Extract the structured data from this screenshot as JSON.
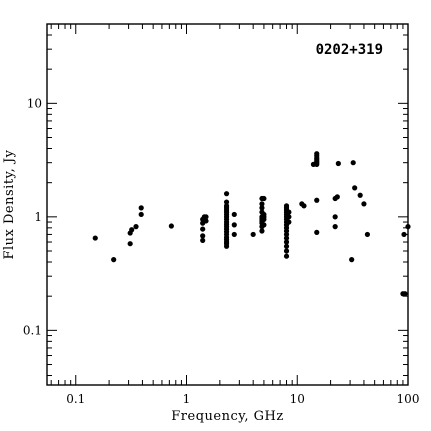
{
  "chart_data": {
    "type": "scatter",
    "title": "0202+319",
    "xlabel": "Frequency, GHz",
    "ylabel": "Flux Density, Jy",
    "xscale": "log",
    "yscale": "log",
    "xlim": [
      0.055,
      100
    ],
    "ylim": [
      0.033,
      50
    ],
    "grid": false,
    "legend": "none",
    "x_ticks": [
      {
        "value": 0.1,
        "label": "0.1"
      },
      {
        "value": 1,
        "label": "1"
      },
      {
        "value": 10,
        "label": "10"
      },
      {
        "value": 100,
        "label": "100"
      }
    ],
    "y_ticks": [
      {
        "value": 0.1,
        "label": "0.1"
      },
      {
        "value": 1,
        "label": "1"
      },
      {
        "value": 10,
        "label": "10"
      }
    ],
    "series": [
      {
        "points": [
          [
            0.15,
            0.65
          ],
          [
            0.22,
            0.42
          ],
          [
            0.31,
            0.58
          ],
          [
            0.31,
            0.72
          ],
          [
            0.32,
            0.77
          ],
          [
            0.35,
            0.82
          ],
          [
            0.39,
            1.05
          ],
          [
            0.39,
            1.2
          ],
          [
            0.73,
            0.83
          ],
          [
            1.4,
            0.62
          ],
          [
            1.4,
            0.68
          ],
          [
            1.4,
            0.78
          ],
          [
            1.4,
            0.88
          ],
          [
            1.4,
            0.95
          ],
          [
            1.45,
            0.99
          ],
          [
            1.45,
            1.0
          ],
          [
            1.5,
            0.92
          ],
          [
            1.5,
            1.0
          ],
          [
            2.3,
            0.55
          ],
          [
            2.3,
            0.58
          ],
          [
            2.3,
            0.6
          ],
          [
            2.3,
            0.63
          ],
          [
            2.3,
            0.66
          ],
          [
            2.3,
            0.7
          ],
          [
            2.3,
            0.74
          ],
          [
            2.3,
            0.78
          ],
          [
            2.3,
            0.82
          ],
          [
            2.3,
            0.86
          ],
          [
            2.3,
            0.9
          ],
          [
            2.3,
            0.95
          ],
          [
            2.3,
            1.0
          ],
          [
            2.3,
            1.05
          ],
          [
            2.3,
            1.1
          ],
          [
            2.3,
            1.15
          ],
          [
            2.3,
            1.2
          ],
          [
            2.3,
            1.25
          ],
          [
            2.3,
            1.35
          ],
          [
            2.3,
            1.6
          ],
          [
            2.7,
            0.7
          ],
          [
            2.7,
            0.85
          ],
          [
            2.7,
            1.05
          ],
          [
            4.0,
            0.7
          ],
          [
            4.8,
            0.75
          ],
          [
            4.8,
            0.82
          ],
          [
            4.8,
            0.88
          ],
          [
            4.8,
            0.92
          ],
          [
            4.8,
            0.96
          ],
          [
            4.8,
            1.0
          ],
          [
            4.8,
            1.1
          ],
          [
            4.8,
            1.2
          ],
          [
            4.8,
            1.3
          ],
          [
            4.8,
            1.45
          ],
          [
            5.0,
            0.85
          ],
          [
            5.0,
            0.95
          ],
          [
            5.0,
            1.0
          ],
          [
            5.0,
            1.05
          ],
          [
            5.0,
            1.45
          ],
          [
            8.0,
            0.45
          ],
          [
            8.0,
            0.5
          ],
          [
            8.0,
            0.55
          ],
          [
            8.0,
            0.6
          ],
          [
            8.0,
            0.65
          ],
          [
            8.0,
            0.7
          ],
          [
            8.0,
            0.75
          ],
          [
            8.0,
            0.8
          ],
          [
            8.0,
            0.85
          ],
          [
            8.0,
            0.9
          ],
          [
            8.0,
            0.95
          ],
          [
            8.0,
            1.0
          ],
          [
            8.0,
            1.05
          ],
          [
            8.0,
            1.1
          ],
          [
            8.0,
            1.15
          ],
          [
            8.0,
            1.2
          ],
          [
            8.0,
            1.25
          ],
          [
            8.4,
            0.9
          ],
          [
            8.4,
            1.0
          ],
          [
            8.4,
            1.1
          ],
          [
            11.0,
            1.3
          ],
          [
            11.5,
            1.25
          ],
          [
            14.0,
            2.9
          ],
          [
            15.0,
            0.73
          ],
          [
            15.0,
            1.4
          ],
          [
            15.0,
            2.9
          ],
          [
            15.0,
            3.0
          ],
          [
            15.0,
            3.1
          ],
          [
            15.0,
            3.2
          ],
          [
            15.0,
            3.3
          ],
          [
            15.0,
            3.45
          ],
          [
            15.0,
            3.6
          ],
          [
            22.0,
            0.82
          ],
          [
            22.0,
            1.0
          ],
          [
            22.0,
            1.45
          ],
          [
            23.0,
            1.5
          ],
          [
            23.5,
            2.95
          ],
          [
            31.0,
            0.42
          ],
          [
            32.0,
            3.0
          ],
          [
            33.0,
            1.8
          ],
          [
            37.0,
            1.55
          ],
          [
            40.0,
            1.3
          ],
          [
            43.0,
            0.7
          ],
          [
            90.0,
            0.21
          ],
          [
            92.0,
            0.7
          ],
          [
            94.0,
            0.21
          ],
          [
            100.0,
            0.82
          ]
        ]
      }
    ]
  }
}
